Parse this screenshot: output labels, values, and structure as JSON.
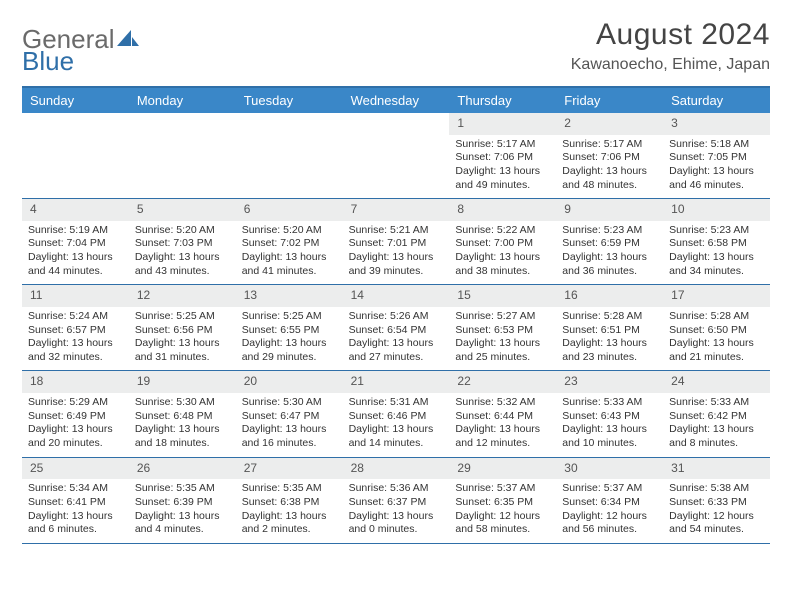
{
  "brand": {
    "part1": "General",
    "part2": "Blue"
  },
  "title": "August 2024",
  "subtitle": "Kawanoecho, Ehime, Japan",
  "colors": {
    "header_bar": "#3a87c8",
    "accent_line": "#2f6fa8",
    "daynum_bg": "#eceded",
    "text": "#333333",
    "title_text": "#444444"
  },
  "day_names": [
    "Sunday",
    "Monday",
    "Tuesday",
    "Wednesday",
    "Thursday",
    "Friday",
    "Saturday"
  ],
  "weeks": [
    [
      {
        "n": "",
        "empty": true
      },
      {
        "n": "",
        "empty": true
      },
      {
        "n": "",
        "empty": true
      },
      {
        "n": "",
        "empty": true
      },
      {
        "n": "1",
        "sunrise": "Sunrise: 5:17 AM",
        "sunset": "Sunset: 7:06 PM",
        "day1": "Daylight: 13 hours",
        "day2": "and 49 minutes."
      },
      {
        "n": "2",
        "sunrise": "Sunrise: 5:17 AM",
        "sunset": "Sunset: 7:06 PM",
        "day1": "Daylight: 13 hours",
        "day2": "and 48 minutes."
      },
      {
        "n": "3",
        "sunrise": "Sunrise: 5:18 AM",
        "sunset": "Sunset: 7:05 PM",
        "day1": "Daylight: 13 hours",
        "day2": "and 46 minutes."
      }
    ],
    [
      {
        "n": "4",
        "sunrise": "Sunrise: 5:19 AM",
        "sunset": "Sunset: 7:04 PM",
        "day1": "Daylight: 13 hours",
        "day2": "and 44 minutes."
      },
      {
        "n": "5",
        "sunrise": "Sunrise: 5:20 AM",
        "sunset": "Sunset: 7:03 PM",
        "day1": "Daylight: 13 hours",
        "day2": "and 43 minutes."
      },
      {
        "n": "6",
        "sunrise": "Sunrise: 5:20 AM",
        "sunset": "Sunset: 7:02 PM",
        "day1": "Daylight: 13 hours",
        "day2": "and 41 minutes."
      },
      {
        "n": "7",
        "sunrise": "Sunrise: 5:21 AM",
        "sunset": "Sunset: 7:01 PM",
        "day1": "Daylight: 13 hours",
        "day2": "and 39 minutes."
      },
      {
        "n": "8",
        "sunrise": "Sunrise: 5:22 AM",
        "sunset": "Sunset: 7:00 PM",
        "day1": "Daylight: 13 hours",
        "day2": "and 38 minutes."
      },
      {
        "n": "9",
        "sunrise": "Sunrise: 5:23 AM",
        "sunset": "Sunset: 6:59 PM",
        "day1": "Daylight: 13 hours",
        "day2": "and 36 minutes."
      },
      {
        "n": "10",
        "sunrise": "Sunrise: 5:23 AM",
        "sunset": "Sunset: 6:58 PM",
        "day1": "Daylight: 13 hours",
        "day2": "and 34 minutes."
      }
    ],
    [
      {
        "n": "11",
        "sunrise": "Sunrise: 5:24 AM",
        "sunset": "Sunset: 6:57 PM",
        "day1": "Daylight: 13 hours",
        "day2": "and 32 minutes."
      },
      {
        "n": "12",
        "sunrise": "Sunrise: 5:25 AM",
        "sunset": "Sunset: 6:56 PM",
        "day1": "Daylight: 13 hours",
        "day2": "and 31 minutes."
      },
      {
        "n": "13",
        "sunrise": "Sunrise: 5:25 AM",
        "sunset": "Sunset: 6:55 PM",
        "day1": "Daylight: 13 hours",
        "day2": "and 29 minutes."
      },
      {
        "n": "14",
        "sunrise": "Sunrise: 5:26 AM",
        "sunset": "Sunset: 6:54 PM",
        "day1": "Daylight: 13 hours",
        "day2": "and 27 minutes."
      },
      {
        "n": "15",
        "sunrise": "Sunrise: 5:27 AM",
        "sunset": "Sunset: 6:53 PM",
        "day1": "Daylight: 13 hours",
        "day2": "and 25 minutes."
      },
      {
        "n": "16",
        "sunrise": "Sunrise: 5:28 AM",
        "sunset": "Sunset: 6:51 PM",
        "day1": "Daylight: 13 hours",
        "day2": "and 23 minutes."
      },
      {
        "n": "17",
        "sunrise": "Sunrise: 5:28 AM",
        "sunset": "Sunset: 6:50 PM",
        "day1": "Daylight: 13 hours",
        "day2": "and 21 minutes."
      }
    ],
    [
      {
        "n": "18",
        "sunrise": "Sunrise: 5:29 AM",
        "sunset": "Sunset: 6:49 PM",
        "day1": "Daylight: 13 hours",
        "day2": "and 20 minutes."
      },
      {
        "n": "19",
        "sunrise": "Sunrise: 5:30 AM",
        "sunset": "Sunset: 6:48 PM",
        "day1": "Daylight: 13 hours",
        "day2": "and 18 minutes."
      },
      {
        "n": "20",
        "sunrise": "Sunrise: 5:30 AM",
        "sunset": "Sunset: 6:47 PM",
        "day1": "Daylight: 13 hours",
        "day2": "and 16 minutes."
      },
      {
        "n": "21",
        "sunrise": "Sunrise: 5:31 AM",
        "sunset": "Sunset: 6:46 PM",
        "day1": "Daylight: 13 hours",
        "day2": "and 14 minutes."
      },
      {
        "n": "22",
        "sunrise": "Sunrise: 5:32 AM",
        "sunset": "Sunset: 6:44 PM",
        "day1": "Daylight: 13 hours",
        "day2": "and 12 minutes."
      },
      {
        "n": "23",
        "sunrise": "Sunrise: 5:33 AM",
        "sunset": "Sunset: 6:43 PM",
        "day1": "Daylight: 13 hours",
        "day2": "and 10 minutes."
      },
      {
        "n": "24",
        "sunrise": "Sunrise: 5:33 AM",
        "sunset": "Sunset: 6:42 PM",
        "day1": "Daylight: 13 hours",
        "day2": "and 8 minutes."
      }
    ],
    [
      {
        "n": "25",
        "sunrise": "Sunrise: 5:34 AM",
        "sunset": "Sunset: 6:41 PM",
        "day1": "Daylight: 13 hours",
        "day2": "and 6 minutes."
      },
      {
        "n": "26",
        "sunrise": "Sunrise: 5:35 AM",
        "sunset": "Sunset: 6:39 PM",
        "day1": "Daylight: 13 hours",
        "day2": "and 4 minutes."
      },
      {
        "n": "27",
        "sunrise": "Sunrise: 5:35 AM",
        "sunset": "Sunset: 6:38 PM",
        "day1": "Daylight: 13 hours",
        "day2": "and 2 minutes."
      },
      {
        "n": "28",
        "sunrise": "Sunrise: 5:36 AM",
        "sunset": "Sunset: 6:37 PM",
        "day1": "Daylight: 13 hours",
        "day2": "and 0 minutes."
      },
      {
        "n": "29",
        "sunrise": "Sunrise: 5:37 AM",
        "sunset": "Sunset: 6:35 PM",
        "day1": "Daylight: 12 hours",
        "day2": "and 58 minutes."
      },
      {
        "n": "30",
        "sunrise": "Sunrise: 5:37 AM",
        "sunset": "Sunset: 6:34 PM",
        "day1": "Daylight: 12 hours",
        "day2": "and 56 minutes."
      },
      {
        "n": "31",
        "sunrise": "Sunrise: 5:38 AM",
        "sunset": "Sunset: 6:33 PM",
        "day1": "Daylight: 12 hours",
        "day2": "and 54 minutes."
      }
    ]
  ]
}
